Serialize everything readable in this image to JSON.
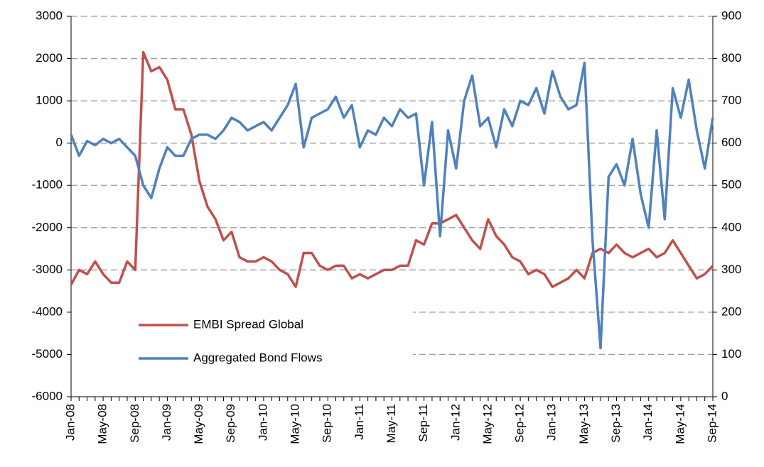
{
  "chart_data": {
    "type": "line",
    "categories": [
      "Jan-08",
      null,
      null,
      null,
      "May-08",
      null,
      null,
      null,
      "Sep-08",
      null,
      null,
      null,
      "Jan-09",
      null,
      null,
      null,
      "May-09",
      null,
      null,
      null,
      "Sep-09",
      null,
      null,
      null,
      "Jan-10",
      null,
      null,
      null,
      "May-10",
      null,
      null,
      null,
      "Sep-10",
      null,
      null,
      null,
      "Jan-11",
      null,
      null,
      null,
      "May-11",
      null,
      null,
      null,
      "Sep-11",
      null,
      null,
      null,
      "Jan-12",
      null,
      null,
      null,
      "May-12",
      null,
      null,
      null,
      "Sep-12",
      null,
      null,
      null,
      "Jan-13",
      null,
      null,
      null,
      "May-13",
      null,
      null,
      null,
      "Sep-13",
      null,
      null,
      null,
      "Jan-14",
      null,
      null,
      null,
      "May-14",
      null,
      null,
      null,
      "Sep-14"
    ],
    "series": [
      {
        "name": "EMBI Spread Global",
        "color": "#c0504d",
        "axis": "y2",
        "values": [
          265,
          300,
          290,
          320,
          290,
          270,
          270,
          320,
          300,
          815,
          770,
          780,
          750,
          680,
          680,
          620,
          510,
          450,
          420,
          370,
          390,
          330,
          320,
          320,
          330,
          320,
          300,
          290,
          260,
          340,
          340,
          310,
          300,
          310,
          310,
          280,
          290,
          280,
          290,
          300,
          300,
          310,
          310,
          370,
          360,
          410,
          410,
          420,
          430,
          400,
          370,
          350,
          420,
          380,
          360,
          330,
          320,
          290,
          300,
          290,
          260,
          270,
          280,
          300,
          280,
          340,
          350,
          340,
          360,
          340,
          330,
          340,
          350,
          330,
          340,
          370,
          340,
          310,
          280,
          290,
          310
        ]
      },
      {
        "name": "Aggregated Bond Flows",
        "color": "#4f81bd",
        "values": [
          200,
          -300,
          50,
          -50,
          100,
          0,
          100,
          -100,
          -300,
          -1000,
          -1300,
          -600,
          -100,
          -300,
          -300,
          100,
          200,
          200,
          100,
          300,
          600,
          500,
          300,
          400,
          500,
          300,
          600,
          900,
          1400,
          -100,
          600,
          700,
          800,
          1100,
          600,
          900,
          -100,
          300,
          200,
          600,
          400,
          800,
          600,
          700,
          -1000,
          500,
          -2200,
          300,
          -600,
          1000,
          1600,
          400,
          600,
          -100,
          800,
          400,
          1000,
          900,
          1300,
          700,
          1700,
          1100,
          800,
          900,
          1900,
          -2300,
          -4850,
          -800,
          -500,
          -1000,
          100,
          -1200,
          -2000,
          300,
          -1800,
          1300,
          600,
          1500,
          300,
          -600,
          600
        ]
      }
    ],
    "ylim": [
      -6000,
      3000
    ],
    "yticks": [
      -6000,
      -5000,
      -4000,
      -3000,
      -2000,
      -1000,
      0,
      1000,
      2000,
      3000
    ],
    "y2lim": [
      0,
      900
    ],
    "y2ticks": [
      0,
      100,
      200,
      300,
      400,
      500,
      600,
      700,
      800,
      900
    ],
    "grid": true,
    "legend": "lower left"
  }
}
